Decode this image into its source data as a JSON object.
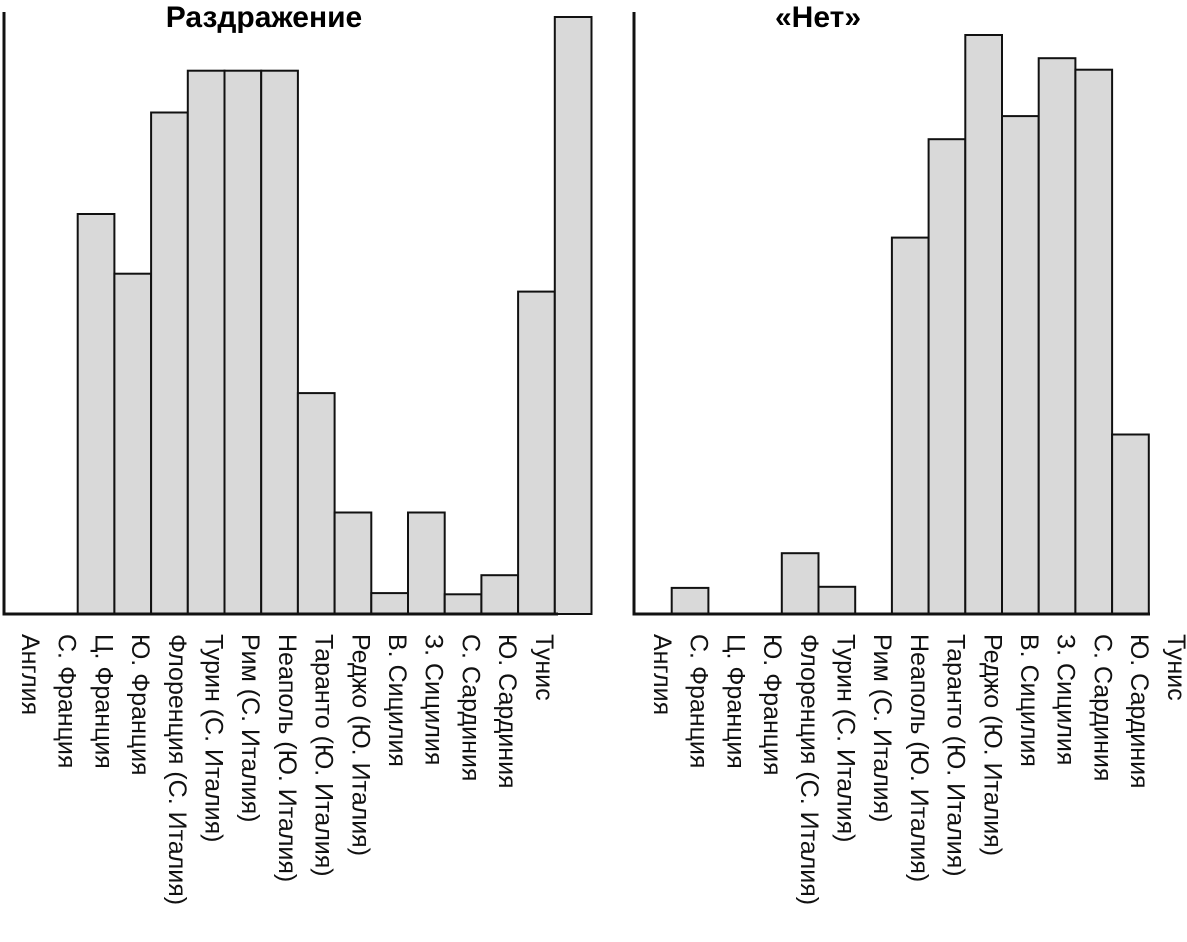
{
  "chart_data": [
    {
      "type": "bar",
      "title": "Раздражение",
      "categories": [
        "Англия",
        "С. Франция",
        "Ц. Франция",
        "Ю. Франция",
        "Флоренция (С. Италия)",
        "Турин (С. Италия)",
        "Рим (С. Италия)",
        "Неаполь (Ю. Италия)",
        "Таранто (Ю. Италия)",
        "Реджо (Ю. Италия)",
        "В. Сицилия",
        "З. Сицилия",
        "С. Сардиния",
        "Ю. Сардиния",
        "Тунис"
      ],
      "values": [
        0,
        67,
        57,
        84,
        91,
        91,
        91,
        37,
        17,
        3.5,
        17,
        3.3,
        6.5,
        54,
        100
      ],
      "ylim": [
        0,
        100
      ],
      "grid": false,
      "legend": "none",
      "bar_color": "#d9d9d9"
    },
    {
      "type": "bar",
      "title": "«Нет»",
      "categories": [
        "Англия",
        "С. Франция",
        "Ц. Франция",
        "Ю. Франция",
        "Флоренция (С. Италия)",
        "Турин (С. Италия)",
        "Рим (С. Италия)",
        "Неаполь (Ю. Италия)",
        "Таранто (Ю. Италия)",
        "Реджо (Ю. Италия)",
        "В. Сицилия",
        "З. Сицилия",
        "С. Сардиния",
        "Ю. Сардиния",
        "Тунис"
      ],
      "values": [
        0,
        4.5,
        0,
        0,
        10.5,
        4.7,
        0,
        65,
        82,
        100,
        86,
        96,
        94,
        31,
        0
      ],
      "ylim": [
        0,
        100
      ],
      "grid": false,
      "legend": "none",
      "bar_color": "#d9d9d9"
    }
  ]
}
